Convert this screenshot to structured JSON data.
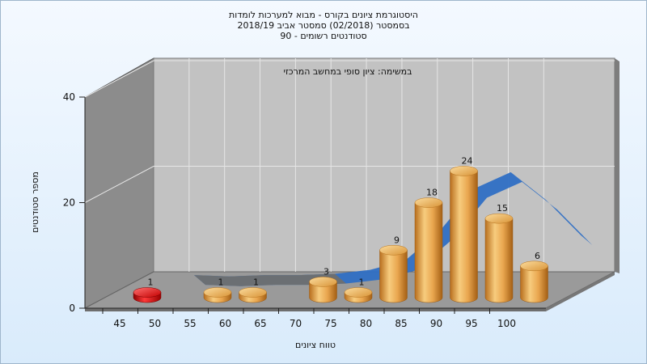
{
  "chart_data": {
    "type": "bar",
    "title_lines": [
      "היסטוגרמת ציונים בקורס - מבוא למערכות לומדות",
      "בסמסטר  (02/2018)  סמסטר אביב 2018/19",
      "סטודנטים רשומים - 90"
    ],
    "subtitle": "במשימה: ציון סופי במחשב המרכזי",
    "xlabel": "טווח ציונים",
    "ylabel": "מספר סטודנטים",
    "ylim": [
      0,
      40
    ],
    "y_ticks": [
      "0",
      "20",
      "40"
    ],
    "categories": [
      "45",
      "50",
      "55",
      "60",
      "65",
      "70",
      "75",
      "80",
      "85",
      "90",
      "95",
      "100"
    ],
    "values": [
      1,
      0,
      1,
      1,
      0,
      3,
      1,
      9,
      18,
      24,
      15,
      6
    ],
    "bar_labels": [
      "1",
      "",
      "1",
      "1",
      "",
      "3",
      "1",
      "9",
      "18",
      "24",
      "15",
      "6"
    ],
    "highlight_category": "45",
    "colors": {
      "bar": "#e8a24a",
      "highlight_bar": "#d81010",
      "trend": "#2f6fc4",
      "trend_flat": "#6f6f6f",
      "back_wall": "#c2c2c2",
      "side_wall": "#8c8c8c",
      "floor": "#9a9a9a"
    }
  }
}
